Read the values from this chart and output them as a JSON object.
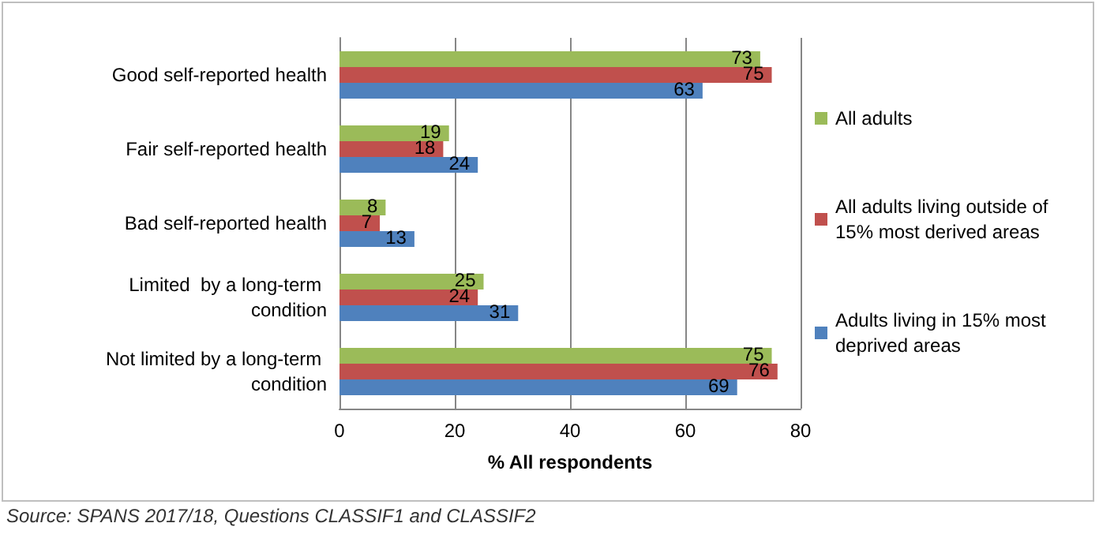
{
  "chart_data": {
    "type": "bar",
    "orientation": "horizontal",
    "categories": [
      "Good self-reported health",
      "Fair self-reported health",
      "Bad self-reported health",
      "Limited  by a long-term condition",
      "Not limited by a long-term condition"
    ],
    "series": [
      {
        "name": "All adults",
        "color": "#9bbb59",
        "values": [
          73,
          19,
          8,
          25,
          75
        ]
      },
      {
        "name": "All adults living outside of 15% most derived areas",
        "color": "#c0504d",
        "values": [
          75,
          18,
          7,
          24,
          76
        ]
      },
      {
        "name": "Adults living in 15% most deprived areas",
        "color": "#4f81bd",
        "values": [
          63,
          24,
          13,
          31,
          69
        ]
      }
    ],
    "xlim": [
      0,
      80
    ],
    "xticks": [
      0,
      20,
      40,
      60,
      80
    ],
    "xlabel": "% All respondents",
    "grid": "x",
    "legend": "right",
    "data_labels": true,
    "annotations": [
      "Source: SPANS 2017/18, Questions CLASSIF1 and CLASSIF2"
    ]
  }
}
